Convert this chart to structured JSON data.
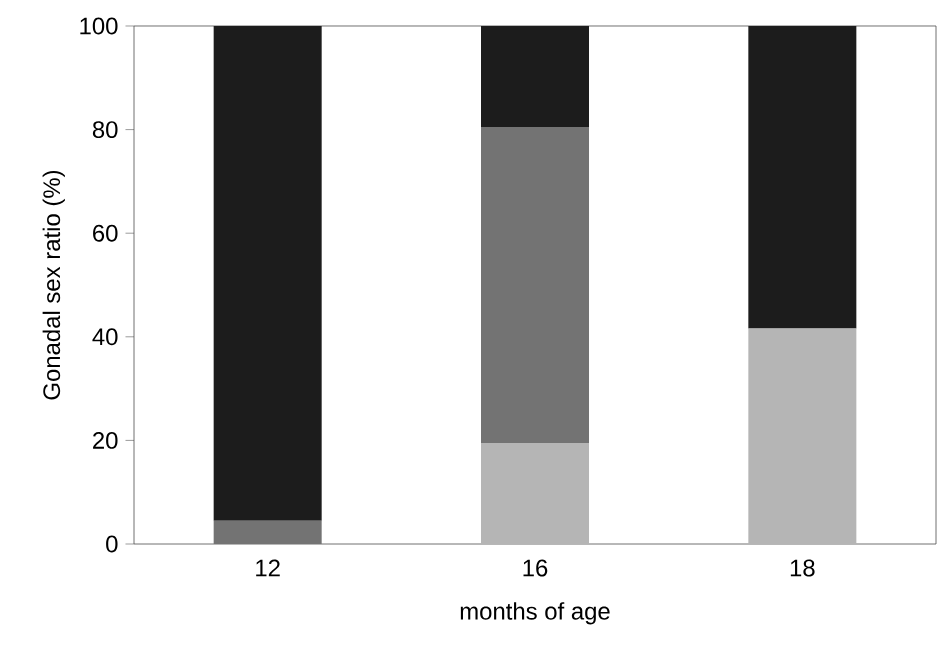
{
  "chart_data": {
    "type": "bar",
    "stacked": true,
    "xlabel": "months of age",
    "ylabel": "Gonadal sex ratio (%)",
    "categories": [
      "12",
      "16",
      "18"
    ],
    "series": [
      {
        "color": "#b5b5b5",
        "values": [
          0,
          19.5,
          41.6
        ]
      },
      {
        "color": "#737373",
        "values": [
          4.5,
          61,
          0
        ]
      },
      {
        "color": "#1c1c1c",
        "values": [
          95.5,
          19.5,
          58.4
        ]
      }
    ],
    "ylim": [
      0,
      100
    ],
    "yticks": [
      0,
      20,
      40,
      60,
      80,
      100
    ]
  }
}
